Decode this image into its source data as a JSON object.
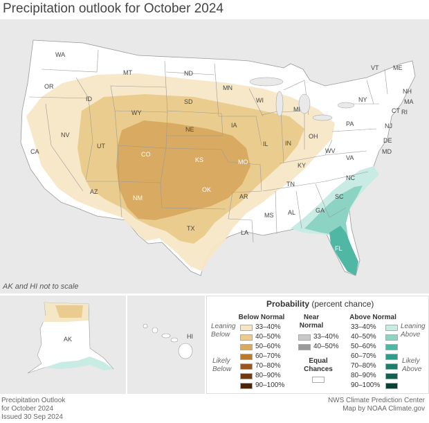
{
  "title": "Precipitation outlook for October 2024",
  "note": "AK and HI not to scale",
  "colors": {
    "background": "#e9e9e9",
    "land": "#ffffff",
    "below_33_40": "#f5e7c6",
    "below_40_50": "#eacd8e",
    "below_50_60": "#d8aa62",
    "above_33_40": "#c8ebe3",
    "above_40_50": "#8dd3c4",
    "above_50_60": "#4fb7a4"
  },
  "states": [
    "WA",
    "OR",
    "CA",
    "ID",
    "NV",
    "MT",
    "WY",
    "UT",
    "AZ",
    "CO",
    "NM",
    "ND",
    "SD",
    "NE",
    "KS",
    "OK",
    "TX",
    "MN",
    "IA",
    "MO",
    "AR",
    "LA",
    "WI",
    "IL",
    "MI",
    "IN",
    "OH",
    "KY",
    "TN",
    "MS",
    "AL",
    "GA",
    "FL",
    "SC",
    "NC",
    "VA",
    "WV",
    "PA",
    "NY",
    "VT",
    "ME",
    "NH",
    "MA",
    "CT",
    "RI",
    "NJ",
    "DE",
    "MD"
  ],
  "inset_labels": {
    "ak": "AK",
    "hi": "HI"
  },
  "legend": {
    "title_bold": "Probability",
    "title_rest": "(percent chance)",
    "below_title": "Below Normal",
    "near_title_1": "Near",
    "near_title_2": "Normal",
    "above_title": "Above Normal",
    "leaning_below_1": "Leaning",
    "leaning_below_2": "Below",
    "likely_below_1": "Likely",
    "likely_below_2": "Below",
    "leaning_above_1": "Leaning",
    "leaning_above_2": "Above",
    "likely_above_1": "Likely",
    "likely_above_2": "Above",
    "equal_1": "Equal",
    "equal_2": "Chances",
    "below_ranges": [
      "33–40%",
      "40–50%",
      "50–60%",
      "60–70%",
      "70–80%",
      "80–90%",
      "90–100%"
    ],
    "below_colors": [
      "#f5e7c6",
      "#eacd8e",
      "#d8aa62",
      "#b8792e",
      "#98571c",
      "#6e3a10",
      "#4a2408"
    ],
    "near_ranges": [
      "33–40%",
      "40–50%"
    ],
    "near_colors": [
      "#c8c8c8",
      "#9a9a9a"
    ],
    "above_ranges": [
      "33–40%",
      "40–50%",
      "50–60%",
      "60–70%",
      "70–80%",
      "80–90%",
      "90–100%"
    ],
    "above_colors": [
      "#c8ebe3",
      "#8dd3c4",
      "#4fb7a4",
      "#2e9c88",
      "#1d7d6b",
      "#125f50",
      "#0a4036"
    ]
  },
  "footer": {
    "left_1": "Precipitation Outlook",
    "left_2": "for October 2024",
    "left_3": "Issued 30 Sep 2024",
    "right_1": "NWS Climate Prediction Center",
    "right_2": "Map by NOAA Climate.gov"
  }
}
